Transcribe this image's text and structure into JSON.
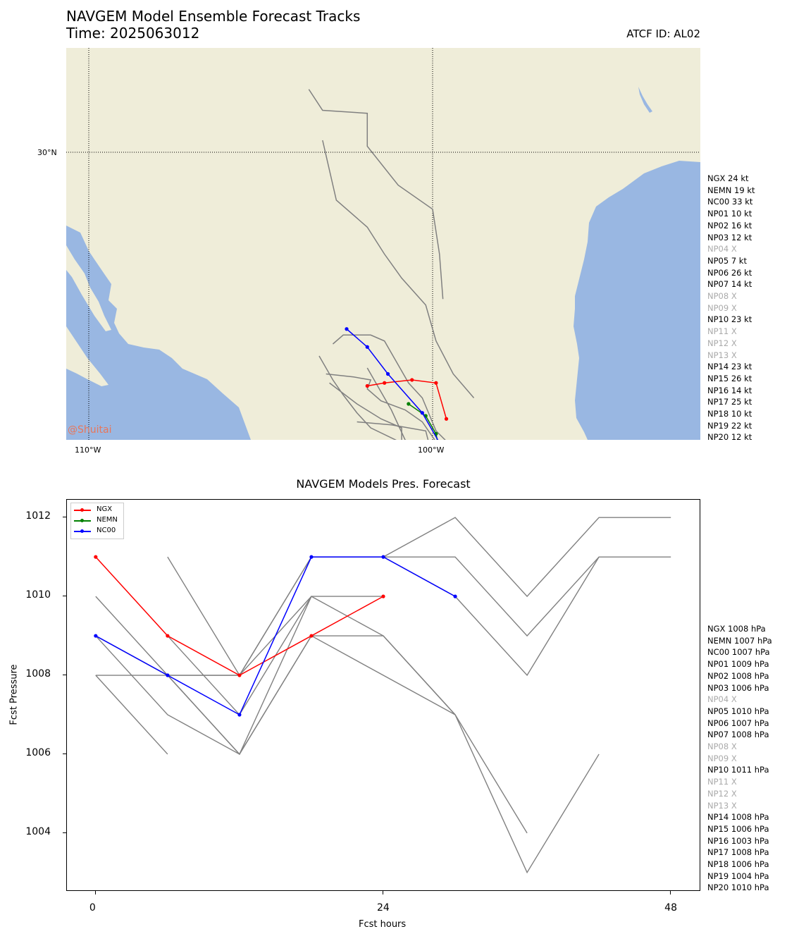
{
  "header": {
    "title_line1": "NAVGEM Model Ensemble Forecast Tracks",
    "title_line2": "Time: 2025063012",
    "atcf": "ATCF ID: AL02"
  },
  "map": {
    "lon_labels": [
      "110°W",
      "100°W"
    ],
    "lat_labels": [
      "30°N"
    ],
    "watermark": "@Shuitai",
    "colors": {
      "land": "#efedd9",
      "water": "#99b7e2",
      "other_members": "#808080",
      "NGX": "#ff0000",
      "NEMN": "#008000",
      "NC00": "#0000ff"
    },
    "tracks": [
      {
        "name": "NGX",
        "color": "#ff0000",
        "points": [
          [
            -101.9,
            22.2
          ],
          [
            -101.4,
            22.3
          ],
          [
            -100.6,
            22.4
          ],
          [
            -99.9,
            22.3
          ],
          [
            -99.6,
            21.1
          ]
        ]
      },
      {
        "name": "NEMN",
        "color": "#008000",
        "points": [
          [
            -100.7,
            21.6
          ],
          [
            -100.2,
            21.2
          ],
          [
            -99.9,
            20.6
          ],
          [
            -99.8,
            20.0
          ]
        ]
      },
      {
        "name": "NC00",
        "color": "#0000ff",
        "points": [
          [
            -102.5,
            24.1
          ],
          [
            -101.9,
            23.5
          ],
          [
            -101.3,
            22.6
          ],
          [
            -100.3,
            21.3
          ],
          [
            -99.7,
            20.1
          ],
          [
            -99.0,
            19.6
          ]
        ]
      }
    ],
    "gray_tracks": [
      [
        [
          -103.6,
          32.1
        ],
        [
          -103.2,
          31.4
        ],
        [
          -101.9,
          31.3
        ],
        [
          -101.9,
          30.2
        ],
        [
          -101.0,
          28.9
        ],
        [
          -100.0,
          28.1
        ],
        [
          -99.8,
          26.6
        ],
        [
          -99.7,
          25.1
        ]
      ],
      [
        [
          -103.2,
          30.4
        ],
        [
          -102.8,
          28.4
        ],
        [
          -101.9,
          27.5
        ],
        [
          -101.4,
          26.6
        ],
        [
          -100.9,
          25.8
        ],
        [
          -100.2,
          24.9
        ],
        [
          -99.9,
          23.7
        ],
        [
          -99.4,
          22.6
        ],
        [
          -98.8,
          21.8
        ]
      ],
      [
        [
          -102.9,
          23.6
        ],
        [
          -102.6,
          23.9
        ],
        [
          -101.8,
          23.9
        ],
        [
          -101.4,
          23.7
        ],
        [
          -101.1,
          23.1
        ],
        [
          -100.7,
          22.3
        ],
        [
          -100.3,
          21.8
        ],
        [
          -99.9,
          20.7
        ],
        [
          -99.2,
          19.9
        ]
      ],
      [
        [
          -103.3,
          23.2
        ],
        [
          -102.9,
          22.4
        ],
        [
          -102.6,
          21.9
        ],
        [
          -102.2,
          21.3
        ],
        [
          -101.8,
          20.8
        ],
        [
          -100.9,
          20.3
        ],
        [
          -100.0,
          20.0
        ]
      ],
      [
        [
          -103.1,
          22.6
        ],
        [
          -102.3,
          22.5
        ],
        [
          -101.8,
          22.4
        ],
        [
          -101.9,
          22.1
        ],
        [
          -101.5,
          21.7
        ],
        [
          -100.8,
          21.4
        ],
        [
          -100.3,
          21.0
        ],
        [
          -99.7,
          20.0
        ]
      ],
      [
        [
          -102.2,
          21.0
        ],
        [
          -101.2,
          20.9
        ],
        [
          -100.2,
          20.7
        ],
        [
          -100.0,
          19.8
        ]
      ],
      [
        [
          -101.9,
          22.8
        ],
        [
          -101.5,
          22.0
        ],
        [
          -101.2,
          21.4
        ],
        [
          -100.8,
          20.4
        ],
        [
          -100.2,
          20.0
        ]
      ],
      [
        [
          -103.0,
          22.3
        ],
        [
          -102.2,
          21.6
        ],
        [
          -101.5,
          21.1
        ],
        [
          -100.9,
          20.8
        ],
        [
          -100.9,
          19.9
        ]
      ]
    ],
    "wind_legend": [
      {
        "label": "NGX 24 kt",
        "missing": false
      },
      {
        "label": "NEMN 19 kt",
        "missing": false
      },
      {
        "label": "NC00 33 kt",
        "missing": false
      },
      {
        "label": "NP01 10 kt",
        "missing": false
      },
      {
        "label": "NP02 16 kt",
        "missing": false
      },
      {
        "label": "NP03 12 kt",
        "missing": false
      },
      {
        "label": "NP04 X",
        "missing": true
      },
      {
        "label": "NP05 7 kt",
        "missing": false
      },
      {
        "label": "NP06 26 kt",
        "missing": false
      },
      {
        "label": "NP07 14 kt",
        "missing": false
      },
      {
        "label": "NP08 X",
        "missing": true
      },
      {
        "label": "NP09 X",
        "missing": true
      },
      {
        "label": "NP10 23 kt",
        "missing": false
      },
      {
        "label": "NP11 X",
        "missing": true
      },
      {
        "label": "NP12 X",
        "missing": true
      },
      {
        "label": "NP13 X",
        "missing": true
      },
      {
        "label": "NP14 23 kt",
        "missing": false
      },
      {
        "label": "NP15 26 kt",
        "missing": false
      },
      {
        "label": "NP16 14 kt",
        "missing": false
      },
      {
        "label": "NP17 25 kt",
        "missing": false
      },
      {
        "label": "NP18 10 kt",
        "missing": false
      },
      {
        "label": "NP19 22 kt",
        "missing": false
      },
      {
        "label": "NP20 12 kt",
        "missing": false
      }
    ]
  },
  "chart_data": {
    "type": "line",
    "title": "NAVGEM Models Pres. Forecast",
    "xlabel": "Fcst hours",
    "ylabel": "Fcst Pressure",
    "xlim": [
      -2.4,
      50.4
    ],
    "ylim": [
      1002.55,
      1012.45
    ],
    "xticks": [
      0,
      24,
      48
    ],
    "yticks": [
      1004,
      1006,
      1008,
      1010,
      1012
    ],
    "legend_position": "upper left",
    "series": [
      {
        "name": "NGX",
        "color": "#ff0000",
        "x": [
          0,
          6,
          12,
          18,
          24
        ],
        "values": [
          1011,
          1009,
          1008,
          1009,
          1010
        ]
      },
      {
        "name": "NEMN",
        "color": "#008000",
        "x": [],
        "values": []
      },
      {
        "name": "NC00",
        "color": "#0000ff",
        "x": [
          0,
          6,
          12,
          18,
          24,
          30
        ],
        "values": [
          1009,
          1008,
          1007,
          1011,
          1011,
          1010
        ]
      }
    ],
    "gray_series": [
      {
        "x": [
          0,
          6,
          12,
          18,
          24,
          30,
          36,
          42,
          48
        ],
        "values": [
          1009,
          1008,
          1008,
          1011,
          1011,
          1012,
          1010,
          1012,
          1012
        ]
      },
      {
        "x": [
          0,
          6,
          12,
          18,
          24,
          30,
          36,
          42,
          48
        ],
        "values": [
          1009,
          1008,
          1008,
          1011,
          1011,
          1011,
          1009,
          1011,
          1011
        ]
      },
      {
        "x": [
          18,
          24,
          30,
          36,
          42
        ],
        "values": [
          1011,
          1011,
          1010,
          1008,
          1011
        ]
      },
      {
        "x": [
          0,
          6,
          12,
          18,
          24,
          30,
          36
        ],
        "values": [
          1010,
          1008,
          1006,
          1010,
          1009,
          1007,
          1004
        ]
      },
      {
        "x": [
          0,
          6,
          12,
          18,
          24,
          30,
          36,
          42
        ],
        "values": [
          1008,
          1008,
          1006,
          1009,
          1009,
          1007,
          1003,
          1006
        ]
      },
      {
        "x": [
          0,
          6
        ],
        "values": [
          1008,
          1006
        ]
      },
      {
        "x": [
          6,
          12,
          18,
          24
        ],
        "values": [
          1011,
          1008,
          1010,
          1010
        ]
      },
      {
        "x": [
          0,
          6,
          12,
          18,
          24,
          30
        ],
        "values": [
          1009,
          1007,
          1006,
          1009,
          1008,
          1007
        ]
      },
      {
        "x": [
          6,
          12,
          18
        ],
        "values": [
          1009,
          1007,
          1010
        ]
      }
    ],
    "pressure_legend": [
      {
        "label": "NGX 1008 hPa",
        "missing": false
      },
      {
        "label": "NEMN 1007 hPa",
        "missing": false
      },
      {
        "label": "NC00 1007 hPa",
        "missing": false
      },
      {
        "label": "NP01 1009 hPa",
        "missing": false
      },
      {
        "label": "NP02 1008 hPa",
        "missing": false
      },
      {
        "label": "NP03 1006 hPa",
        "missing": false
      },
      {
        "label": "NP04 X",
        "missing": true
      },
      {
        "label": "NP05 1010 hPa",
        "missing": false
      },
      {
        "label": "NP06 1007 hPa",
        "missing": false
      },
      {
        "label": "NP07 1008 hPa",
        "missing": false
      },
      {
        "label": "NP08 X",
        "missing": true
      },
      {
        "label": "NP09 X",
        "missing": true
      },
      {
        "label": "NP10 1011 hPa",
        "missing": false
      },
      {
        "label": "NP11 X",
        "missing": true
      },
      {
        "label": "NP12 X",
        "missing": true
      },
      {
        "label": "NP13 X",
        "missing": true
      },
      {
        "label": "NP14 1008 hPa",
        "missing": false
      },
      {
        "label": "NP15 1006 hPa",
        "missing": false
      },
      {
        "label": "NP16 1003 hPa",
        "missing": false
      },
      {
        "label": "NP17 1008 hPa",
        "missing": false
      },
      {
        "label": "NP18 1006 hPa",
        "missing": false
      },
      {
        "label": "NP19 1004 hPa",
        "missing": false
      },
      {
        "label": "NP20 1010 hPa",
        "missing": false
      }
    ]
  }
}
